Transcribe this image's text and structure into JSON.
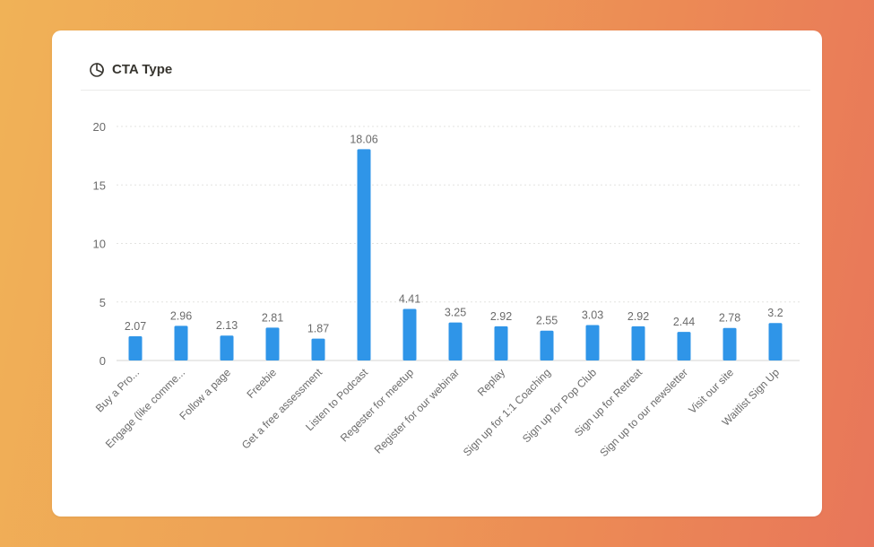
{
  "card": {
    "title": "CTA Type",
    "icon": "pie-chart-icon"
  },
  "colors": {
    "bar": "#2f95e8",
    "grid": "#e3e3e1",
    "text": "#6b6b6b",
    "title": "#37352f"
  },
  "chart_data": {
    "type": "bar",
    "title": "CTA Type",
    "xlabel": "",
    "ylabel": "",
    "ylim": [
      0,
      20
    ],
    "yticks": [
      0,
      5,
      10,
      15,
      20
    ],
    "grid": true,
    "categories": [
      "Buy a Pro...",
      "Engage (like comme...",
      "Follow a page",
      "Freebie",
      "Get a free assessment",
      "Listen to Podcast",
      "Regester for meetup",
      "Register for our webinar",
      "Replay",
      "Sign up for 1:1 Coaching",
      "Sign up for Pop Club",
      "Sign up for Retreat",
      "Sign up to our newsletter",
      "Visit our site",
      "Waitlist Sign Up"
    ],
    "values": [
      2.07,
      2.96,
      2.13,
      2.81,
      1.87,
      18.06,
      4.41,
      3.25,
      2.92,
      2.55,
      3.03,
      2.92,
      2.44,
      2.78,
      3.2
    ],
    "value_labels": [
      "2.07",
      "2.96",
      "2.13",
      "2.81",
      "1.87",
      "18.06",
      "4.41",
      "3.25",
      "2.92",
      "2.55",
      "3.03",
      "2.92",
      "2.44",
      "2.78",
      "3.2"
    ]
  }
}
